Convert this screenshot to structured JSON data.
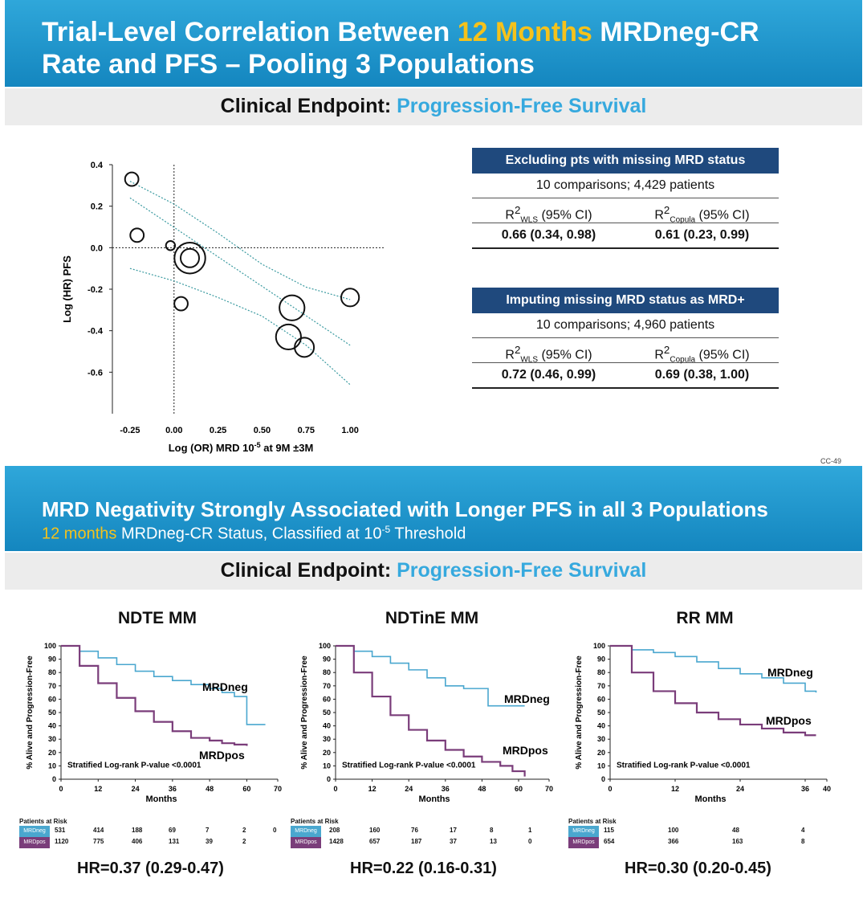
{
  "slide1": {
    "title_part1": "Trial-Level Correlation Between ",
    "title_highlight": "12 Months",
    "title_part2": " MRDneg-CR",
    "title_line2": "Rate and PFS – Pooling 3 Populations",
    "endpoint_label": "Clinical Endpoint: ",
    "endpoint_value": "Progression-Free Survival",
    "slide_code": "CC-49",
    "table1": {
      "header": "Excluding pts with missing MRD status",
      "summary": "10 comparisons; 4,429 patients",
      "col1_head_base": "R",
      "col1_head_sup": "2",
      "col1_head_sub": "WLS",
      "col1_head_tail": " (95% CI)",
      "col2_head_base": "R",
      "col2_head_sup": "2",
      "col2_head_sub": "Copula",
      "col2_head_tail": " (95% CI)",
      "col1_value": "0.66 (0.34, 0.98)",
      "col2_value": "0.61 (0.23, 0.99)"
    },
    "table2": {
      "header": "Imputing missing MRD status as MRD+",
      "summary": "10 comparisons; 4,960 patients",
      "col1_head_base": "R",
      "col1_head_sup": "2",
      "col1_head_sub": "WLS",
      "col1_head_tail": " (95% CI)",
      "col2_head_base": "R",
      "col2_head_sup": "2",
      "col2_head_sub": "Copula",
      "col2_head_tail": " (95% CI)",
      "col1_value": "0.72 (0.46, 0.99)",
      "col2_value": "0.69 (0.38, 1.00)"
    }
  },
  "slide2": {
    "title": "MRD Negativity Strongly Associated with Longer PFS in all 3 Populations",
    "subtitle_highlight": "12 months",
    "subtitle_part": " MRDneg-CR Status, Classified at 10",
    "subtitle_sup": "-5",
    "subtitle_tail": " Threshold",
    "endpoint_label": "Clinical Endpoint: ",
    "endpoint_value": "Progression-Free Survival"
  },
  "colors": {
    "banner": "#1a8fc9",
    "highlight": "#f5c21b",
    "mrdneg": "#4aa7cf",
    "mrdpos": "#7a3d7a",
    "table_head": "#1f497d"
  },
  "chart_data": [
    {
      "type": "scatter",
      "title": "",
      "xlabel": "Log (OR) MRD 10",
      "xlabel_sup": "-5",
      "xlabel_tail": " at 9M ±3M",
      "ylabel": "Log (HR) PFS",
      "xlim": [
        -0.35,
        1.2
      ],
      "ylim": [
        -0.8,
        0.4
      ],
      "xticks": [
        "-0.25",
        "0.00",
        "0.25",
        "0.50",
        "0.75",
        "1.00"
      ],
      "xtick_values": [
        -0.25,
        0,
        0.25,
        0.5,
        0.75,
        1.0
      ],
      "yticks": [
        "0.4",
        "0.2",
        "0.0",
        "-0.2",
        "-0.4",
        "-0.6"
      ],
      "ytick_values": [
        0.4,
        0.2,
        0.0,
        -0.2,
        -0.4,
        -0.6
      ],
      "points": [
        {
          "x": -0.24,
          "y": 0.33,
          "size": 3
        },
        {
          "x": -0.21,
          "y": 0.06,
          "size": 3
        },
        {
          "x": -0.02,
          "y": 0.01,
          "size": 1.5
        },
        {
          "x": 0.09,
          "y": -0.05,
          "size": 9
        },
        {
          "x": 0.04,
          "y": -0.27,
          "size": 3
        },
        {
          "x": 0.67,
          "y": -0.29,
          "size": 7
        },
        {
          "x": 0.65,
          "y": -0.43,
          "size": 7
        },
        {
          "x": 0.74,
          "y": -0.48,
          "size": 5
        },
        {
          "x": 1.0,
          "y": -0.24,
          "size": 4.5
        }
      ],
      "fit_line": [
        [
          -0.25,
          0.24
        ],
        [
          1.0,
          -0.47
        ]
      ],
      "ci_upper": [
        [
          -0.25,
          0.32
        ],
        [
          0.0,
          0.21
        ],
        [
          0.25,
          0.07
        ],
        [
          0.5,
          -0.08
        ],
        [
          0.75,
          -0.19
        ],
        [
          1.0,
          -0.25
        ]
      ],
      "ci_lower": [
        [
          -0.25,
          -0.1
        ],
        [
          0.0,
          -0.16
        ],
        [
          0.25,
          -0.24
        ],
        [
          0.5,
          -0.33
        ],
        [
          0.75,
          -0.47
        ],
        [
          1.0,
          -0.66
        ]
      ]
    },
    {
      "type": "line",
      "title": "NDTE MM",
      "ylabel": "% Alive and Progression-Free",
      "xlabel": "Months",
      "xlim": [
        0,
        70
      ],
      "ylim": [
        0,
        100
      ],
      "xticks": [
        0,
        12,
        24,
        36,
        48,
        60,
        70
      ],
      "yticks": [
        0,
        10,
        20,
        30,
        40,
        50,
        60,
        70,
        80,
        90,
        100
      ],
      "annotation": "Stratified Log-rank P-value <0.0001",
      "series": [
        {
          "name": "MRDneg",
          "x": [
            0,
            6,
            12,
            18,
            24,
            30,
            36,
            42,
            48,
            52,
            56,
            60,
            60,
            66
          ],
          "y": [
            100,
            96,
            91,
            86,
            81,
            77,
            74,
            71,
            68,
            65,
            62,
            61,
            41,
            41
          ]
        },
        {
          "name": "MRDpos",
          "x": [
            0,
            6,
            12,
            18,
            24,
            30,
            36,
            42,
            48,
            52,
            56,
            60
          ],
          "y": [
            100,
            85,
            72,
            61,
            51,
            43,
            36,
            31,
            29,
            27,
            26,
            25
          ]
        }
      ],
      "risk_label": "Patients at Risk",
      "risk_x": [
        "531",
        "414",
        "188",
        "69",
        "7",
        "2",
        "0"
      ],
      "risk_rows": [
        {
          "name": "MRDneg",
          "values": [
            "531",
            "414",
            "188",
            "69",
            "7",
            "2",
            "0"
          ]
        },
        {
          "name": "MRDpos",
          "values": [
            "1120",
            "775",
            "406",
            "131",
            "39",
            "2",
            ""
          ]
        }
      ],
      "hr": "HR=0.37 (0.29-0.47)"
    },
    {
      "type": "line",
      "title": "NDTinE MM",
      "ylabel": "% Alive and Progression-Free",
      "xlabel": "Months",
      "xlim": [
        0,
        70
      ],
      "ylim": [
        0,
        100
      ],
      "xticks": [
        0,
        12,
        24,
        36,
        48,
        60,
        70
      ],
      "yticks": [
        0,
        10,
        20,
        30,
        40,
        50,
        60,
        70,
        80,
        90,
        100
      ],
      "annotation": "Stratified Log-rank P-value <0.0001",
      "series": [
        {
          "name": "MRDneg",
          "x": [
            0,
            6,
            12,
            18,
            24,
            30,
            36,
            42,
            48,
            50,
            50,
            62
          ],
          "y": [
            100,
            96,
            92,
            87,
            82,
            76,
            70,
            68,
            68,
            68,
            55,
            55
          ]
        },
        {
          "name": "MRDpos",
          "x": [
            0,
            6,
            12,
            18,
            24,
            30,
            36,
            42,
            48,
            54,
            58,
            62
          ],
          "y": [
            100,
            80,
            62,
            48,
            37,
            29,
            22,
            17,
            13,
            10,
            6,
            2
          ]
        }
      ],
      "risk_label": "Patients at Risk",
      "risk_rows": [
        {
          "name": "MRDneg",
          "values": [
            "208",
            "160",
            "76",
            "17",
            "8",
            "1"
          ]
        },
        {
          "name": "MRDpos",
          "values": [
            "1428",
            "657",
            "187",
            "37",
            "13",
            "0"
          ]
        }
      ],
      "hr": "HR=0.22 (0.16-0.31)"
    },
    {
      "type": "line",
      "title": "RR MM",
      "ylabel": "% Alive and Progression-Free",
      "xlabel": "Months",
      "xlim": [
        0,
        40
      ],
      "ylim": [
        0,
        100
      ],
      "xticks": [
        0,
        12,
        24,
        36,
        40
      ],
      "yticks": [
        0,
        10,
        20,
        30,
        40,
        50,
        60,
        70,
        80,
        90,
        100
      ],
      "annotation": "Stratified Log-rank P-value <0.0001",
      "series": [
        {
          "name": "MRDneg",
          "x": [
            0,
            4,
            8,
            12,
            16,
            20,
            24,
            28,
            32,
            36,
            38
          ],
          "y": [
            100,
            97,
            95,
            92,
            88,
            83,
            79,
            76,
            72,
            66,
            65
          ]
        },
        {
          "name": "MRDpos",
          "x": [
            0,
            4,
            8,
            12,
            16,
            20,
            24,
            28,
            32,
            36,
            38
          ],
          "y": [
            100,
            80,
            66,
            57,
            50,
            45,
            41,
            38,
            35,
            33,
            33
          ]
        }
      ],
      "risk_label": "Patients at Risk",
      "risk_rows": [
        {
          "name": "MRDneg",
          "values": [
            "115",
            "100",
            "48",
            "4"
          ]
        },
        {
          "name": "MRDpos",
          "values": [
            "654",
            "366",
            "163",
            "8"
          ]
        }
      ],
      "hr": "HR=0.30 (0.20-0.45)"
    }
  ]
}
